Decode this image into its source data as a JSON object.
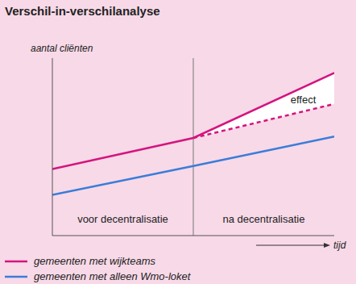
{
  "chart_data": {
    "type": "line",
    "title": "Verschil-in-verschilanalyse",
    "x_label": "tijd",
    "y_label": "aantal cliënten",
    "x": [
      0,
      5,
      10
    ],
    "xlim": [
      0,
      10
    ],
    "ylim": [
      0,
      12
    ],
    "tick_labels": false,
    "grid": false,
    "legend": "bottom",
    "reference_x": 5,
    "series": [
      {
        "name": "gemeenten met wijkteams",
        "color": "#d4147e",
        "line_style": "solid",
        "values": [
          4.5,
          6.6,
          11
        ]
      },
      {
        "color": "#d4147e",
        "line_style": "dashed",
        "values": [
          null,
          6.6,
          8.9
        ]
      },
      {
        "name": "gemeenten met alleen Wmo-loket",
        "color": "#3b7dd8",
        "line_style": "solid",
        "values": [
          2.75,
          4.7,
          6.7
        ]
      }
    ],
    "annotations": [
      {
        "text": "effect",
        "x": 8.9,
        "y": 9.2
      },
      {
        "text": "voor decentralisatie",
        "x": 2.5,
        "y": 1.1
      },
      {
        "text": "na decentralisatie",
        "x": 7.5,
        "y": 1.1
      }
    ]
  }
}
